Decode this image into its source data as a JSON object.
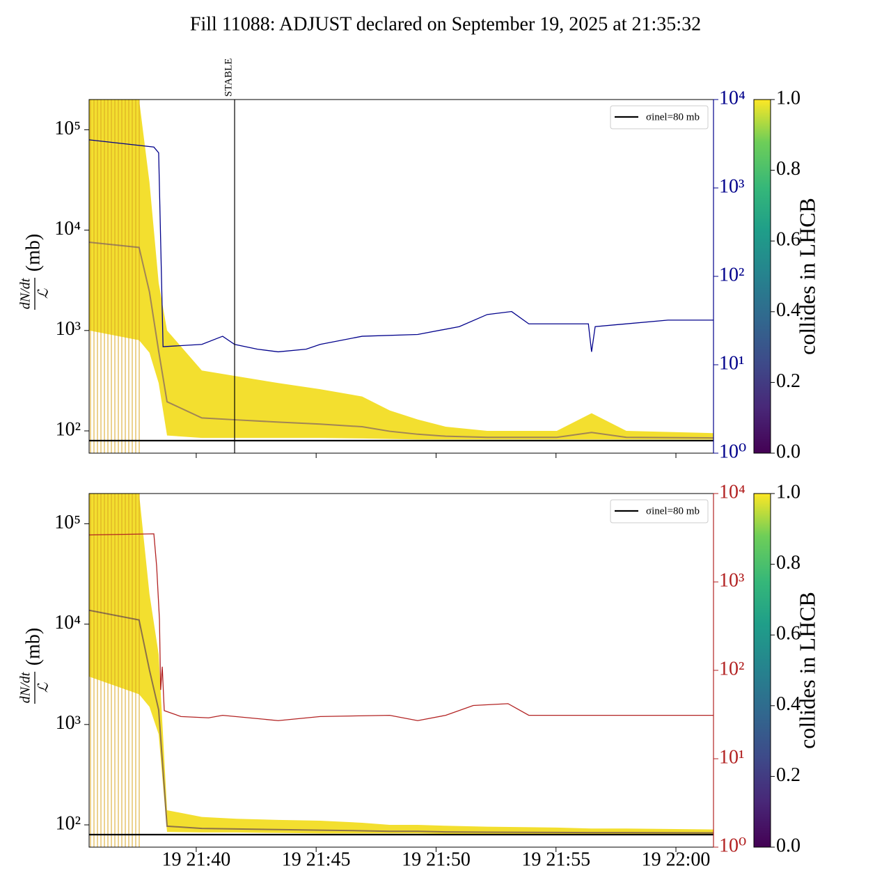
{
  "title": "Fill 11088: ADJUST declared on September 19, 2025 at 21:35:32",
  "chart_data": [
    {
      "type": "line",
      "ylabel": {
        "numerator": "dN/dt",
        "denominator": "ℒ",
        "unit": "(mb)"
      },
      "log_y": true,
      "ylim": [
        60,
        200000
      ],
      "yticks": [
        {
          "value": 100,
          "label": "10²"
        },
        {
          "value": 1000,
          "label": "10³"
        },
        {
          "value": 10000,
          "label": "10⁴"
        },
        {
          "value": 100000,
          "label": "10⁵"
        }
      ],
      "y2lim": [
        1,
        10000
      ],
      "y2color": "#00008b",
      "y2ticks": [
        {
          "value": 1,
          "label": "10⁰"
        },
        {
          "value": 10,
          "label": "10¹"
        },
        {
          "value": 100,
          "label": "10²"
        },
        {
          "value": 1000,
          "label": "10³"
        },
        {
          "value": 10000,
          "label": "10⁴"
        }
      ],
      "xlim": [
        "21:35:32",
        "22:01:34"
      ],
      "xticks": [
        "21:40:00",
        "21:45:00",
        "21:50:00",
        "21:55:00",
        "22:00:00"
      ],
      "reference": {
        "value": 80,
        "label": "σinel=80 mb",
        "color": "#000000"
      },
      "annotation": {
        "x": "21:41:36",
        "label": "STABLE"
      },
      "band": {
        "color": "#f2dc18",
        "edge_color": "#6b4a70",
        "x": [
          "21:35:32",
          "21:37:37",
          "21:38:03",
          "21:38:26",
          "21:38:47",
          "21:40:14",
          "21:41:41",
          "21:43:25",
          "21:45:10",
          "21:46:55",
          "21:48:04",
          "21:49:14",
          "21:50:24",
          "21:52:08",
          "21:55:02",
          "21:56:29",
          "21:57:56",
          "22:01:34"
        ],
        "high": [
          200000,
          200000,
          30000,
          3000,
          1000,
          400,
          350,
          300,
          260,
          220,
          160,
          130,
          110,
          100,
          100,
          150,
          100,
          95
        ],
        "low": [
          1000,
          800,
          600,
          300,
          90,
          85,
          85,
          85,
          85,
          84,
          83,
          82,
          82,
          82,
          82,
          82,
          82,
          82
        ]
      },
      "series": [
        {
          "color": "#00008b",
          "axis": "y2",
          "x": [
            "21:35:32",
            "21:38:14",
            "21:38:26",
            "21:38:37",
            "21:40:14",
            "21:41:06",
            "21:41:36",
            "21:42:33",
            "21:43:25",
            "21:44:35",
            "21:45:10",
            "21:46:55",
            "21:49:14",
            "21:50:58",
            "21:52:08",
            "21:53:09",
            "21:53:52",
            "21:55:37",
            "21:56:21",
            "21:56:29",
            "21:56:38",
            "21:59:40",
            "22:01:34"
          ],
          "values": [
            3500,
            2900,
            2500,
            16,
            17,
            21,
            17,
            15,
            14,
            15,
            17,
            21,
            22,
            27,
            37,
            40,
            29,
            29,
            29,
            14,
            27,
            32,
            32
          ]
        }
      ],
      "colorbar": {
        "label": "collides in LHCB",
        "ticks": [
          {
            "value": 0,
            "label": "0.0"
          },
          {
            "value": 0.2,
            "label": "0.2"
          },
          {
            "value": 0.4,
            "label": "0.4"
          },
          {
            "value": 0.6,
            "label": "0.6"
          },
          {
            "value": 0.8,
            "label": "0.8"
          },
          {
            "value": 1,
            "label": "1.0"
          }
        ]
      }
    },
    {
      "type": "line",
      "ylabel": {
        "numerator": "dN/dt",
        "denominator": "ℒ",
        "unit": "(mb)"
      },
      "log_y": true,
      "ylim": [
        60,
        200000
      ],
      "yticks": [
        {
          "value": 100,
          "label": "10²"
        },
        {
          "value": 1000,
          "label": "10³"
        },
        {
          "value": 10000,
          "label": "10⁴"
        },
        {
          "value": 100000,
          "label": "10⁵"
        }
      ],
      "y2lim": [
        1,
        10000
      ],
      "y2color": "#b22222",
      "y2ticks": [
        {
          "value": 1,
          "label": "10⁰"
        },
        {
          "value": 10,
          "label": "10¹"
        },
        {
          "value": 100,
          "label": "10²"
        },
        {
          "value": 1000,
          "label": "10³"
        },
        {
          "value": 10000,
          "label": "10⁴"
        }
      ],
      "xlim": [
        "21:35:32",
        "22:01:34"
      ],
      "xticks": [
        {
          "value": "21:40:00",
          "label": "19 21:40"
        },
        {
          "value": "21:45:00",
          "label": "19 21:45"
        },
        {
          "value": "21:50:00",
          "label": "19 21:50"
        },
        {
          "value": "21:55:00",
          "label": "19 21:55"
        },
        {
          "value": "22:00:00",
          "label": "19 22:00"
        }
      ],
      "reference": {
        "value": 80,
        "label": "σinel=80 mb",
        "color": "#000000"
      },
      "band": {
        "color": "#f2dc18",
        "edge_color": "#4a2a5a",
        "x": [
          "21:35:32",
          "21:37:37",
          "21:38:03",
          "21:38:26",
          "21:38:47",
          "21:40:14",
          "21:41:41",
          "21:43:25",
          "21:45:10",
          "21:46:55",
          "21:48:04",
          "21:49:14",
          "21:50:24",
          "21:52:08",
          "21:55:02",
          "21:56:29",
          "21:57:56",
          "22:01:34"
        ],
        "high": [
          200000,
          200000,
          20000,
          5000,
          140,
          120,
          115,
          112,
          110,
          105,
          100,
          100,
          98,
          96,
          94,
          92,
          92,
          90
        ],
        "low": [
          3000,
          2000,
          1500,
          800,
          85,
          84,
          84,
          83,
          82,
          82,
          82,
          82,
          81,
          81,
          81,
          81,
          81,
          81
        ]
      },
      "series": [
        {
          "color": "#b22222",
          "axis": "y2",
          "x": [
            "21:35:32",
            "21:38:14",
            "21:38:21",
            "21:38:28",
            "21:38:31",
            "21:38:35",
            "21:38:40",
            "21:39:22",
            "21:40:31",
            "21:41:06",
            "21:43:25",
            "21:45:10",
            "21:48:04",
            "21:49:14",
            "21:50:24",
            "21:51:33",
            "21:53:00",
            "21:53:52",
            "22:01:34"
          ],
          "values": [
            3400,
            3500,
            1500,
            375,
            60,
            110,
            35,
            30,
            29,
            31,
            27,
            30,
            31,
            27,
            31,
            40,
            42,
            31,
            31
          ]
        }
      ],
      "colorbar": {
        "label": "collides in LHCB",
        "ticks": [
          {
            "value": 0,
            "label": "0.0"
          },
          {
            "value": 0.2,
            "label": "0.2"
          },
          {
            "value": 0.4,
            "label": "0.4"
          },
          {
            "value": 0.6,
            "label": "0.6"
          },
          {
            "value": 0.8,
            "label": "0.8"
          },
          {
            "value": 1,
            "label": "1.0"
          }
        ]
      }
    }
  ]
}
